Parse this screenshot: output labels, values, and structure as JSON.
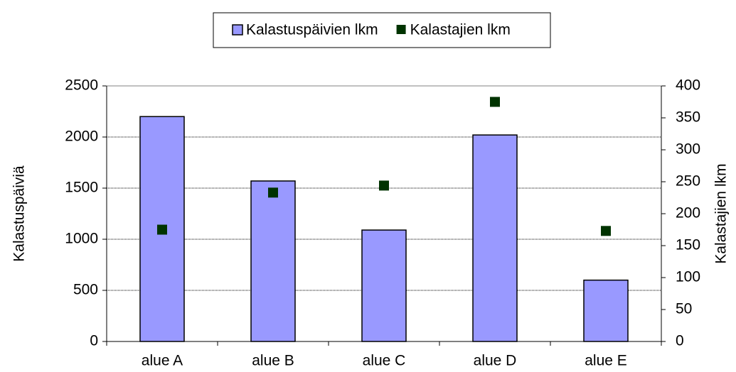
{
  "chart_data": {
    "type": "bar",
    "categories": [
      "alue A",
      "alue B",
      "alue C",
      "alue D",
      "alue E"
    ],
    "series": [
      {
        "name": "Kalastuspäivien lkm",
        "type": "bar",
        "color": "#9999ff",
        "values": [
          2200,
          1570,
          1090,
          2020,
          600
        ]
      },
      {
        "name": "Kalastajien lkm",
        "type": "scatter",
        "axis": "y2",
        "color": "#003300",
        "values": [
          175,
          233,
          244,
          375,
          173
        ]
      }
    ],
    "ylabel": "Kalastuspäiviä",
    "y2label": "Kalastajien lkm",
    "ylim": [
      0,
      2500
    ],
    "yticks": [
      0,
      500,
      1000,
      1500,
      2000,
      2500
    ],
    "y2lim": [
      0,
      400
    ],
    "y2ticks": [
      0,
      50,
      100,
      150,
      200,
      250,
      300,
      350,
      400
    ],
    "grid": true,
    "legend": "top"
  }
}
